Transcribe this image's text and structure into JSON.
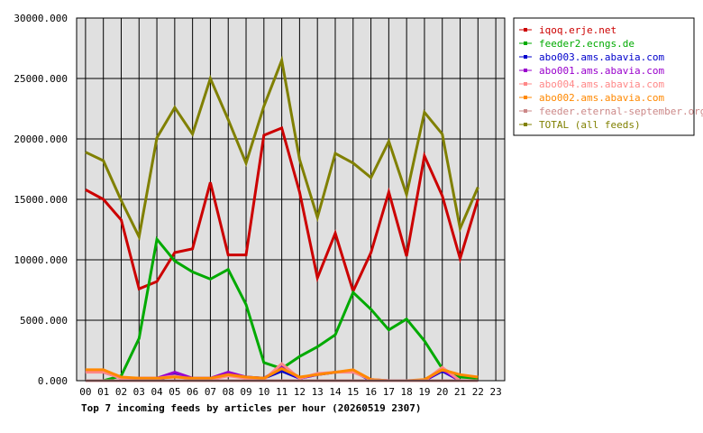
{
  "chart_data": {
    "type": "line",
    "title": "Top 7 incoming feeds by articles per hour (20260519 2307)",
    "xlabel": "",
    "ylabel": "",
    "x": [
      "00",
      "01",
      "02",
      "03",
      "04",
      "05",
      "06",
      "07",
      "08",
      "09",
      "10",
      "11",
      "12",
      "13",
      "14",
      "15",
      "16",
      "17",
      "18",
      "19",
      "20",
      "21",
      "22",
      "23"
    ],
    "y_ticks": [
      "0.000",
      "5000.000",
      "10000.000",
      "15000.000",
      "20000.000",
      "25000.000",
      "30000.000"
    ],
    "ylim": [
      0,
      30000
    ],
    "grid": true,
    "legend_position": "right",
    "series": [
      {
        "name": "iqoq.erje.net",
        "color": "#cc0000",
        "values": [
          15800,
          15000,
          13300,
          7600,
          8200,
          10600,
          10900,
          16400,
          10400,
          10400,
          20300,
          20900,
          15600,
          8500,
          12200,
          7400,
          10600,
          15600,
          10300,
          18600,
          15300,
          10100,
          15000,
          null
        ]
      },
      {
        "name": "feeder2.ecngs.de",
        "color": "#00aa00",
        "values": [
          0,
          0,
          400,
          3500,
          11700,
          9900,
          9000,
          8400,
          9200,
          6300,
          1500,
          1000,
          2000,
          2800,
          3800,
          7300,
          5900,
          4200,
          5100,
          3300,
          1000,
          300,
          200,
          null
        ]
      },
      {
        "name": "abo003.ams.abavia.com",
        "color": "#0000cc",
        "values": [
          0,
          0,
          0,
          0,
          0,
          600,
          200,
          0,
          600,
          300,
          200,
          800,
          200,
          500,
          700,
          800,
          0,
          0,
          0,
          0,
          800,
          0,
          0,
          null
        ]
      },
      {
        "name": "abo001.ams.abavia.com",
        "color": "#9900cc",
        "values": [
          800,
          700,
          200,
          200,
          200,
          700,
          200,
          200,
          700,
          300,
          200,
          1100,
          200,
          500,
          700,
          800,
          100,
          0,
          0,
          0,
          900,
          0,
          0,
          null
        ]
      },
      {
        "name": "abo004.ams.abavia.com",
        "color": "#ff8888",
        "values": [
          700,
          700,
          200,
          200,
          200,
          400,
          100,
          100,
          400,
          200,
          100,
          1400,
          200,
          600,
          700,
          700,
          100,
          0,
          0,
          0,
          1100,
          0,
          0,
          null
        ]
      },
      {
        "name": "abo002.ams.abavia.com",
        "color": "#ff8800",
        "values": [
          900,
          900,
          300,
          200,
          200,
          300,
          200,
          200,
          500,
          300,
          200,
          1000,
          300,
          500,
          700,
          900,
          100,
          0,
          0,
          100,
          900,
          500,
          300,
          null
        ]
      },
      {
        "name": "feeder.eternal-september.org",
        "color": "#cc8888",
        "values": [
          0,
          0,
          0,
          0,
          0,
          0,
          0,
          0,
          0,
          0,
          0,
          0,
          0,
          0,
          0,
          0,
          0,
          0,
          0,
          0,
          0,
          0,
          0,
          null
        ]
      },
      {
        "name": "TOTAL (all feeds)",
        "color": "#808000",
        "values": [
          18900,
          18200,
          14900,
          11900,
          20100,
          22600,
          20400,
          25000,
          21600,
          18000,
          22700,
          26500,
          18300,
          13500,
          18800,
          18000,
          16800,
          19800,
          15400,
          22200,
          20400,
          12600,
          16000,
          null
        ]
      }
    ]
  }
}
